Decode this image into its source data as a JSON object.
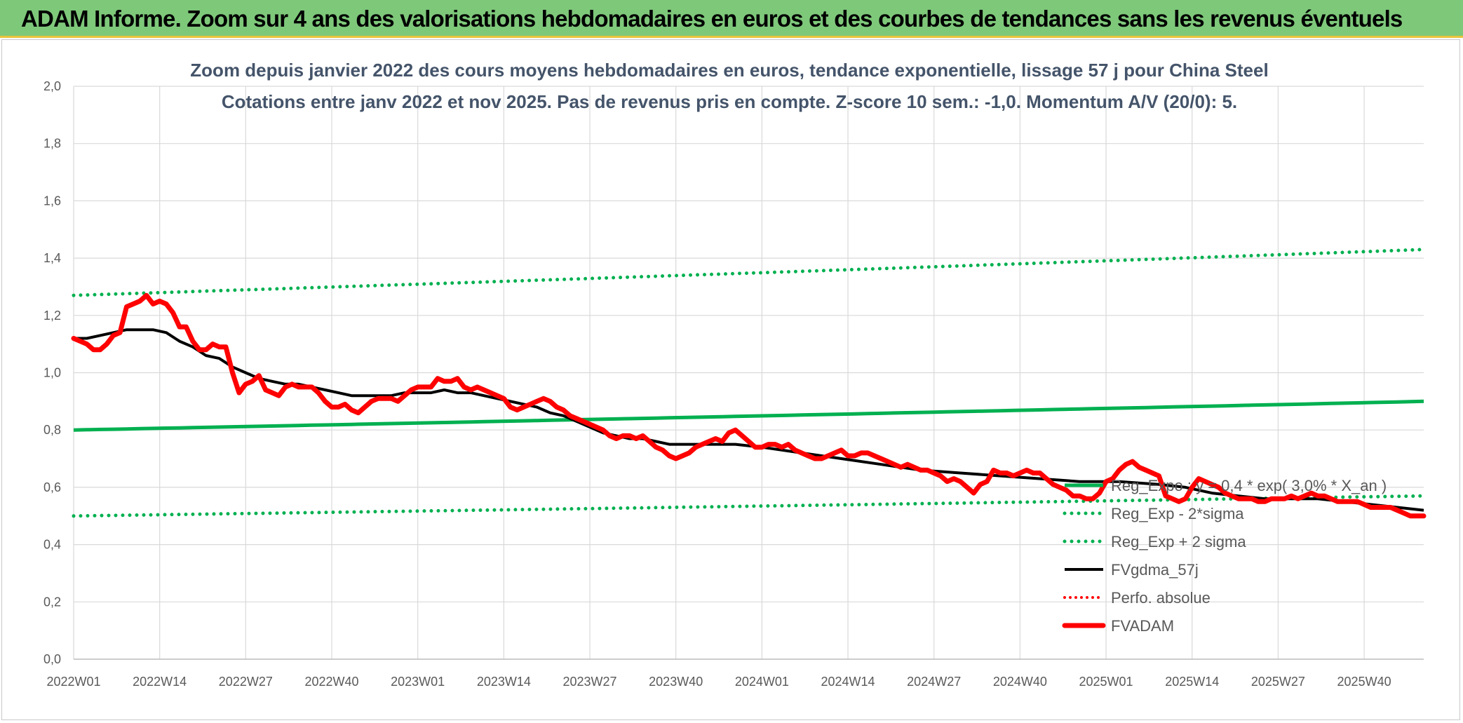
{
  "banner": {
    "title": "ADAM Informe. Zoom sur 4 ans des valorisations hebdomadaires en euros et des courbes de tendances sans les revenus éventuels"
  },
  "chart_data": {
    "type": "line",
    "title_line1": "Zoom depuis janvier 2022 des cours moyens hebdomadaires en euros, tendance exponentielle, lissage 57 j pour China Steel",
    "title_line2": "Cotations entre janv 2022 et nov 2025. Pas de revenus pris en compte. Z-score 10 sem.: -1,0. Momentum A/V (20/0): 5.",
    "x_tick_labels": [
      "2022W01",
      "2022W14",
      "2022W27",
      "2022W40",
      "2023W01",
      "2023W14",
      "2023W27",
      "2023W40",
      "2024W01",
      "2024W14",
      "2024W27",
      "2024W40",
      "2025W01",
      "2025W14",
      "2025W27",
      "2025W40"
    ],
    "y_tick_labels": [
      "0,0",
      "0,2",
      "0,4",
      "0,6",
      "0,8",
      "1,0",
      "1,2",
      "1,4",
      "1,6",
      "1,8",
      "2,0"
    ],
    "ylim": [
      0,
      2.0
    ],
    "y_step": 0.2,
    "x_range_weeks": [
      0,
      204
    ],
    "x_tick_every_weeks": 13,
    "grid": true,
    "legend_position": "bottom-right",
    "colors": {
      "green": "#00b050",
      "black": "#000000",
      "red": "#ff0000"
    },
    "series": [
      {
        "name": "Reg_Expo : y = 0,4 * exp( 3,0% * X_an )",
        "style": "solid-green",
        "start": 0.8,
        "end": 0.9
      },
      {
        "name": "Reg_Exp - 2*sigma",
        "style": "dotted-green",
        "start": 0.5,
        "end": 0.57
      },
      {
        "name": "Reg_Exp + 2 sigma",
        "style": "dotted-green",
        "start": 1.27,
        "end": 1.43
      },
      {
        "name": "FVgdma_57j",
        "style": "solid-black",
        "points": [
          [
            0,
            1.12
          ],
          [
            2,
            1.12
          ],
          [
            4,
            1.13
          ],
          [
            6,
            1.14
          ],
          [
            8,
            1.15
          ],
          [
            10,
            1.15
          ],
          [
            12,
            1.15
          ],
          [
            14,
            1.14
          ],
          [
            16,
            1.11
          ],
          [
            18,
            1.09
          ],
          [
            20,
            1.06
          ],
          [
            22,
            1.05
          ],
          [
            24,
            1.02
          ],
          [
            26,
            1.0
          ],
          [
            28,
            0.98
          ],
          [
            30,
            0.97
          ],
          [
            32,
            0.96
          ],
          [
            34,
            0.96
          ],
          [
            36,
            0.95
          ],
          [
            38,
            0.94
          ],
          [
            40,
            0.93
          ],
          [
            42,
            0.92
          ],
          [
            44,
            0.92
          ],
          [
            46,
            0.92
          ],
          [
            48,
            0.92
          ],
          [
            50,
            0.93
          ],
          [
            52,
            0.93
          ],
          [
            54,
            0.93
          ],
          [
            56,
            0.94
          ],
          [
            58,
            0.93
          ],
          [
            60,
            0.93
          ],
          [
            62,
            0.92
          ],
          [
            64,
            0.91
          ],
          [
            66,
            0.9
          ],
          [
            68,
            0.89
          ],
          [
            70,
            0.88
          ],
          [
            72,
            0.86
          ],
          [
            74,
            0.85
          ],
          [
            76,
            0.83
          ],
          [
            78,
            0.81
          ],
          [
            80,
            0.79
          ],
          [
            82,
            0.78
          ],
          [
            84,
            0.77
          ],
          [
            86,
            0.77
          ],
          [
            88,
            0.76
          ],
          [
            90,
            0.75
          ],
          [
            92,
            0.75
          ],
          [
            94,
            0.75
          ],
          [
            96,
            0.75
          ],
          [
            98,
            0.75
          ],
          [
            100,
            0.75
          ],
          [
            104,
            0.74
          ],
          [
            110,
            0.72
          ],
          [
            116,
            0.7
          ],
          [
            122,
            0.68
          ],
          [
            128,
            0.66
          ],
          [
            134,
            0.65
          ],
          [
            140,
            0.64
          ],
          [
            146,
            0.63
          ],
          [
            152,
            0.62
          ],
          [
            158,
            0.62
          ],
          [
            164,
            0.61
          ],
          [
            168,
            0.6
          ],
          [
            172,
            0.58
          ],
          [
            176,
            0.57
          ],
          [
            180,
            0.56
          ],
          [
            184,
            0.56
          ],
          [
            188,
            0.56
          ],
          [
            192,
            0.55
          ],
          [
            196,
            0.54
          ],
          [
            200,
            0.53
          ],
          [
            204,
            0.52
          ]
        ]
      },
      {
        "name": "Perfo. absolue",
        "style": "dotted-red",
        "points": []
      },
      {
        "name": "FVADAM",
        "style": "thick-red",
        "points": [
          [
            0,
            1.12
          ],
          [
            1,
            1.11
          ],
          [
            2,
            1.1
          ],
          [
            3,
            1.08
          ],
          [
            4,
            1.08
          ],
          [
            5,
            1.1
          ],
          [
            6,
            1.13
          ],
          [
            7,
            1.14
          ],
          [
            8,
            1.23
          ],
          [
            9,
            1.24
          ],
          [
            10,
            1.25
          ],
          [
            11,
            1.27
          ],
          [
            12,
            1.24
          ],
          [
            13,
            1.25
          ],
          [
            14,
            1.24
          ],
          [
            15,
            1.21
          ],
          [
            16,
            1.16
          ],
          [
            17,
            1.16
          ],
          [
            18,
            1.11
          ],
          [
            19,
            1.08
          ],
          [
            20,
            1.08
          ],
          [
            21,
            1.1
          ],
          [
            22,
            1.09
          ],
          [
            23,
            1.09
          ],
          [
            24,
            1.0
          ],
          [
            25,
            0.93
          ],
          [
            26,
            0.96
          ],
          [
            27,
            0.97
          ],
          [
            28,
            0.99
          ],
          [
            29,
            0.94
          ],
          [
            30,
            0.93
          ],
          [
            31,
            0.92
          ],
          [
            32,
            0.95
          ],
          [
            33,
            0.96
          ],
          [
            34,
            0.95
          ],
          [
            35,
            0.95
          ],
          [
            36,
            0.95
          ],
          [
            37,
            0.93
          ],
          [
            38,
            0.9
          ],
          [
            39,
            0.88
          ],
          [
            40,
            0.88
          ],
          [
            41,
            0.89
          ],
          [
            42,
            0.87
          ],
          [
            43,
            0.86
          ],
          [
            44,
            0.88
          ],
          [
            45,
            0.9
          ],
          [
            46,
            0.91
          ],
          [
            47,
            0.91
          ],
          [
            48,
            0.91
          ],
          [
            49,
            0.9
          ],
          [
            50,
            0.92
          ],
          [
            51,
            0.94
          ],
          [
            52,
            0.95
          ],
          [
            53,
            0.95
          ],
          [
            54,
            0.95
          ],
          [
            55,
            0.98
          ],
          [
            56,
            0.97
          ],
          [
            57,
            0.97
          ],
          [
            58,
            0.98
          ],
          [
            59,
            0.95
          ],
          [
            60,
            0.94
          ],
          [
            61,
            0.95
          ],
          [
            62,
            0.94
          ],
          [
            63,
            0.93
          ],
          [
            64,
            0.92
          ],
          [
            65,
            0.91
          ],
          [
            66,
            0.88
          ],
          [
            67,
            0.87
          ],
          [
            68,
            0.88
          ],
          [
            69,
            0.89
          ],
          [
            70,
            0.9
          ],
          [
            71,
            0.91
          ],
          [
            72,
            0.9
          ],
          [
            73,
            0.88
          ],
          [
            74,
            0.87
          ],
          [
            75,
            0.85
          ],
          [
            76,
            0.84
          ],
          [
            77,
            0.83
          ],
          [
            78,
            0.82
          ],
          [
            79,
            0.81
          ],
          [
            80,
            0.8
          ],
          [
            81,
            0.78
          ],
          [
            82,
            0.77
          ],
          [
            83,
            0.78
          ],
          [
            84,
            0.78
          ],
          [
            85,
            0.77
          ],
          [
            86,
            0.78
          ],
          [
            87,
            0.76
          ],
          [
            88,
            0.74
          ],
          [
            89,
            0.73
          ],
          [
            90,
            0.71
          ],
          [
            91,
            0.7
          ],
          [
            92,
            0.71
          ],
          [
            93,
            0.72
          ],
          [
            94,
            0.74
          ],
          [
            95,
            0.75
          ],
          [
            96,
            0.76
          ],
          [
            97,
            0.77
          ],
          [
            98,
            0.76
          ],
          [
            99,
            0.79
          ],
          [
            100,
            0.8
          ],
          [
            101,
            0.78
          ],
          [
            102,
            0.76
          ],
          [
            103,
            0.74
          ],
          [
            104,
            0.74
          ],
          [
            105,
            0.75
          ],
          [
            106,
            0.75
          ],
          [
            107,
            0.74
          ],
          [
            108,
            0.75
          ],
          [
            109,
            0.73
          ],
          [
            110,
            0.72
          ],
          [
            111,
            0.71
          ],
          [
            112,
            0.7
          ],
          [
            113,
            0.7
          ],
          [
            114,
            0.71
          ],
          [
            115,
            0.72
          ],
          [
            116,
            0.73
          ],
          [
            117,
            0.71
          ],
          [
            118,
            0.71
          ],
          [
            119,
            0.72
          ],
          [
            120,
            0.72
          ],
          [
            121,
            0.71
          ],
          [
            122,
            0.7
          ],
          [
            123,
            0.69
          ],
          [
            124,
            0.68
          ],
          [
            125,
            0.67
          ],
          [
            126,
            0.68
          ],
          [
            127,
            0.67
          ],
          [
            128,
            0.66
          ],
          [
            129,
            0.66
          ],
          [
            130,
            0.65
          ],
          [
            131,
            0.64
          ],
          [
            132,
            0.62
          ],
          [
            133,
            0.63
          ],
          [
            134,
            0.62
          ],
          [
            135,
            0.6
          ],
          [
            136,
            0.58
          ],
          [
            137,
            0.61
          ],
          [
            138,
            0.62
          ],
          [
            139,
            0.66
          ],
          [
            140,
            0.65
          ],
          [
            141,
            0.65
          ],
          [
            142,
            0.64
          ],
          [
            143,
            0.65
          ],
          [
            144,
            0.66
          ],
          [
            145,
            0.65
          ],
          [
            146,
            0.65
          ],
          [
            147,
            0.63
          ],
          [
            148,
            0.61
          ],
          [
            149,
            0.6
          ],
          [
            150,
            0.59
          ],
          [
            151,
            0.57
          ],
          [
            152,
            0.57
          ],
          [
            153,
            0.56
          ],
          [
            154,
            0.56
          ],
          [
            155,
            0.58
          ],
          [
            156,
            0.62
          ],
          [
            157,
            0.63
          ],
          [
            158,
            0.66
          ],
          [
            159,
            0.68
          ],
          [
            160,
            0.69
          ],
          [
            161,
            0.67
          ],
          [
            162,
            0.66
          ],
          [
            163,
            0.65
          ],
          [
            164,
            0.64
          ],
          [
            165,
            0.57
          ],
          [
            166,
            0.56
          ],
          [
            167,
            0.55
          ],
          [
            168,
            0.56
          ],
          [
            169,
            0.6
          ],
          [
            170,
            0.63
          ],
          [
            171,
            0.62
          ],
          [
            172,
            0.61
          ],
          [
            173,
            0.6
          ],
          [
            174,
            0.58
          ],
          [
            175,
            0.57
          ],
          [
            176,
            0.56
          ],
          [
            177,
            0.56
          ],
          [
            178,
            0.56
          ],
          [
            179,
            0.55
          ],
          [
            180,
            0.55
          ],
          [
            181,
            0.56
          ],
          [
            182,
            0.56
          ],
          [
            183,
            0.56
          ],
          [
            184,
            0.57
          ],
          [
            185,
            0.56
          ],
          [
            186,
            0.57
          ],
          [
            187,
            0.58
          ],
          [
            188,
            0.57
          ],
          [
            189,
            0.57
          ],
          [
            190,
            0.56
          ],
          [
            191,
            0.55
          ],
          [
            192,
            0.55
          ],
          [
            193,
            0.55
          ],
          [
            194,
            0.55
          ],
          [
            195,
            0.54
          ],
          [
            196,
            0.53
          ],
          [
            197,
            0.53
          ],
          [
            198,
            0.53
          ],
          [
            199,
            0.53
          ],
          [
            200,
            0.52
          ],
          [
            201,
            0.51
          ],
          [
            202,
            0.5
          ],
          [
            203,
            0.5
          ],
          [
            204,
            0.5
          ]
        ]
      }
    ]
  }
}
